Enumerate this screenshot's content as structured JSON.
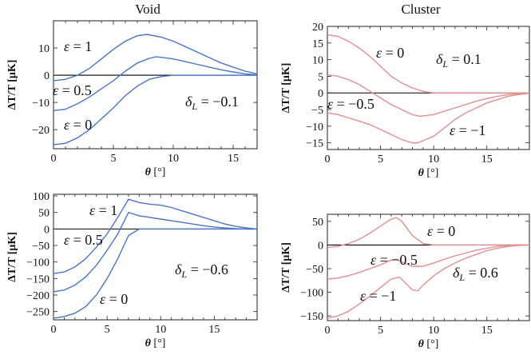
{
  "column_titles": [
    "Void",
    "Cluster"
  ],
  "colors": {
    "void": "#4a74c8",
    "cluster": "#e0908f"
  },
  "chart_data": [
    {
      "type": "line",
      "column": "Void",
      "x_label": "θ [°]",
      "y_label": "ΔT/T  [μK]",
      "xlim": [
        0,
        17
      ],
      "ylim": [
        -27,
        20
      ],
      "xticks": [
        0,
        5,
        10,
        15
      ],
      "yticks": [
        10,
        0,
        -10,
        -20
      ],
      "annotation": "δL = −0.1",
      "series": [
        {
          "name": "ε = 1",
          "x": [
            0,
            1,
            2,
            3,
            4,
            5,
            6,
            7,
            7.8,
            9,
            10,
            11,
            12,
            13,
            14,
            15,
            16,
            17
          ],
          "y": [
            -2,
            -1.5,
            0,
            2.5,
            6,
            9.5,
            12.5,
            14.5,
            15,
            14,
            12.5,
            10.5,
            8.5,
            6.5,
            4.5,
            3,
            1.5,
            0.5
          ]
        },
        {
          "name": "ε = 0.5",
          "x": [
            0,
            1,
            2,
            3,
            4,
            5,
            6,
            7,
            8,
            8.6,
            10,
            11,
            12,
            13,
            14,
            15,
            16,
            17
          ],
          "y": [
            -13,
            -12.5,
            -10.5,
            -8,
            -5,
            -2,
            1.5,
            4.5,
            6.2,
            6.8,
            6,
            5,
            4,
            3,
            2,
            1.2,
            0.5,
            0.1
          ]
        },
        {
          "name": "ε = 0",
          "x": [
            0,
            1,
            2,
            3,
            4,
            5,
            6,
            7,
            8,
            9,
            10,
            11,
            12,
            13,
            14,
            15,
            16,
            17
          ],
          "y": [
            -25.5,
            -25,
            -23,
            -20,
            -16,
            -12,
            -7.5,
            -4,
            -1.5,
            -0.5,
            0,
            0,
            0,
            0,
            0,
            0,
            0,
            0
          ]
        }
      ],
      "labels": [
        "ε = 1",
        "ε = 0.5",
        "ε = 0"
      ]
    },
    {
      "type": "line",
      "column": "Cluster",
      "x_label": "θ [°]",
      "y_label": "ΔT/T  [μK]",
      "xlim": [
        0,
        19
      ],
      "ylim": [
        -17,
        20
      ],
      "xticks": [
        0,
        5,
        10,
        15
      ],
      "yticks": [
        20,
        15,
        10,
        5,
        0,
        -5,
        -10,
        -15
      ],
      "annotation": "δL = 0.1",
      "series": [
        {
          "name": "ε = 0",
          "x": [
            0,
            1,
            2,
            3,
            4,
            5,
            6,
            7,
            8,
            9,
            10,
            11,
            12,
            19
          ],
          "y": [
            17.5,
            17,
            15.5,
            13.5,
            11,
            8,
            5,
            3,
            1.5,
            0.5,
            0,
            0,
            0,
            0
          ]
        },
        {
          "name": "ε = −0.5",
          "x": [
            0,
            1,
            2,
            3,
            4,
            5,
            6,
            7,
            8,
            8.7,
            10,
            11,
            12,
            13,
            14,
            15,
            16,
            17,
            18,
            19
          ],
          "y": [
            5.5,
            5,
            4,
            2.5,
            0.5,
            -1.5,
            -3.5,
            -5,
            -6.5,
            -7,
            -6.5,
            -5.5,
            -4.5,
            -3.5,
            -2.5,
            -1.7,
            -1,
            -0.5,
            -0.2,
            0
          ]
        },
        {
          "name": "ε = −1",
          "x": [
            0,
            1,
            2,
            3,
            4,
            5,
            6,
            7,
            8,
            8.5,
            10,
            11,
            12,
            13,
            14,
            15,
            16,
            17,
            18,
            19
          ],
          "y": [
            -6,
            -6.5,
            -7.5,
            -8.5,
            -9.5,
            -11,
            -12.5,
            -14,
            -15,
            -15,
            -13,
            -10.5,
            -8,
            -6,
            -4.5,
            -3,
            -2,
            -1,
            -0.5,
            -0.1
          ]
        }
      ],
      "labels": [
        "ε = 0",
        "ε = −0.5",
        "ε = −1"
      ]
    },
    {
      "type": "line",
      "column": "Void",
      "x_label": "θ [°]",
      "y_label": "ΔT/T  [μK]",
      "xlim": [
        0,
        19
      ],
      "ylim": [
        -275,
        105
      ],
      "xticks": [
        0,
        5,
        10,
        15
      ],
      "yticks": [
        100,
        50,
        0,
        -50,
        -100,
        -150,
        -200,
        -250
      ],
      "annotation": "δL = −0.6",
      "series": [
        {
          "name": "ε = 1",
          "x": [
            0,
            1,
            2,
            3,
            4,
            5,
            6,
            7,
            8,
            9,
            10,
            11,
            12,
            13,
            14,
            15,
            16,
            17,
            18,
            19
          ],
          "y": [
            -135,
            -130,
            -115,
            -90,
            -55,
            -15,
            35,
            90,
            80,
            75,
            72,
            65,
            55,
            45,
            35,
            25,
            15,
            8,
            3,
            0
          ]
        },
        {
          "name": "ε = 0.5",
          "x": [
            0,
            1,
            2,
            3,
            4,
            5,
            6,
            7,
            8,
            9,
            10,
            11,
            12,
            13,
            14,
            15,
            16,
            17,
            18,
            19
          ],
          "y": [
            -190,
            -185,
            -170,
            -145,
            -110,
            -65,
            -15,
            50,
            40,
            35,
            30,
            25,
            20,
            15,
            10,
            6,
            3,
            1,
            0,
            0
          ]
        },
        {
          "name": "ε = 0",
          "x": [
            0,
            1,
            2,
            3,
            4,
            5,
            6,
            7,
            8,
            9,
            19
          ],
          "y": [
            -270,
            -265,
            -255,
            -235,
            -200,
            -150,
            -90,
            -20,
            0,
            0,
            0
          ]
        }
      ],
      "labels": [
        "ε = 1",
        "ε = 0.5",
        "ε = 0"
      ]
    },
    {
      "type": "line",
      "column": "Cluster",
      "x_label": "θ [°]",
      "y_label": "ΔT/T  [μK]",
      "xlim": [
        0,
        19
      ],
      "ylim": [
        -160,
        65
      ],
      "xticks": [
        0,
        5,
        10,
        15
      ],
      "yticks": [
        50,
        0,
        -50,
        -100,
        -150
      ],
      "annotation": "δL = 0.6",
      "series": [
        {
          "name": "ε = 0",
          "x": [
            0,
            1,
            2,
            3,
            4,
            5,
            6,
            6.5,
            7,
            8,
            9,
            10,
            19
          ],
          "y": [
            -5,
            -3,
            3,
            12,
            25,
            40,
            55,
            58,
            50,
            20,
            3,
            0,
            0
          ]
        },
        {
          "name": "ε = −0.5",
          "x": [
            0,
            1,
            2,
            3,
            4,
            5,
            6,
            6.5,
            7,
            8,
            9,
            10,
            11,
            12,
            13,
            14,
            15,
            16,
            17,
            18,
            19
          ],
          "y": [
            -72,
            -70,
            -65,
            -58,
            -50,
            -42,
            -32,
            -30,
            -36,
            -45,
            -45,
            -38,
            -30,
            -23,
            -17,
            -11,
            -7,
            -3,
            -1,
            0,
            0
          ]
        },
        {
          "name": "ε = −1",
          "x": [
            0,
            1,
            2,
            3,
            4,
            5,
            6,
            6.8,
            8,
            8.5,
            9,
            10,
            11,
            12,
            13,
            14,
            15,
            16,
            17,
            18,
            19
          ],
          "y": [
            -155,
            -150,
            -140,
            -125,
            -108,
            -90,
            -72,
            -68,
            -95,
            -97,
            -85,
            -65,
            -50,
            -38,
            -28,
            -20,
            -12,
            -7,
            -3,
            -1,
            0
          ]
        }
      ],
      "labels": [
        "ε = 0",
        "ε = −0.5",
        "ε = −1"
      ]
    }
  ]
}
